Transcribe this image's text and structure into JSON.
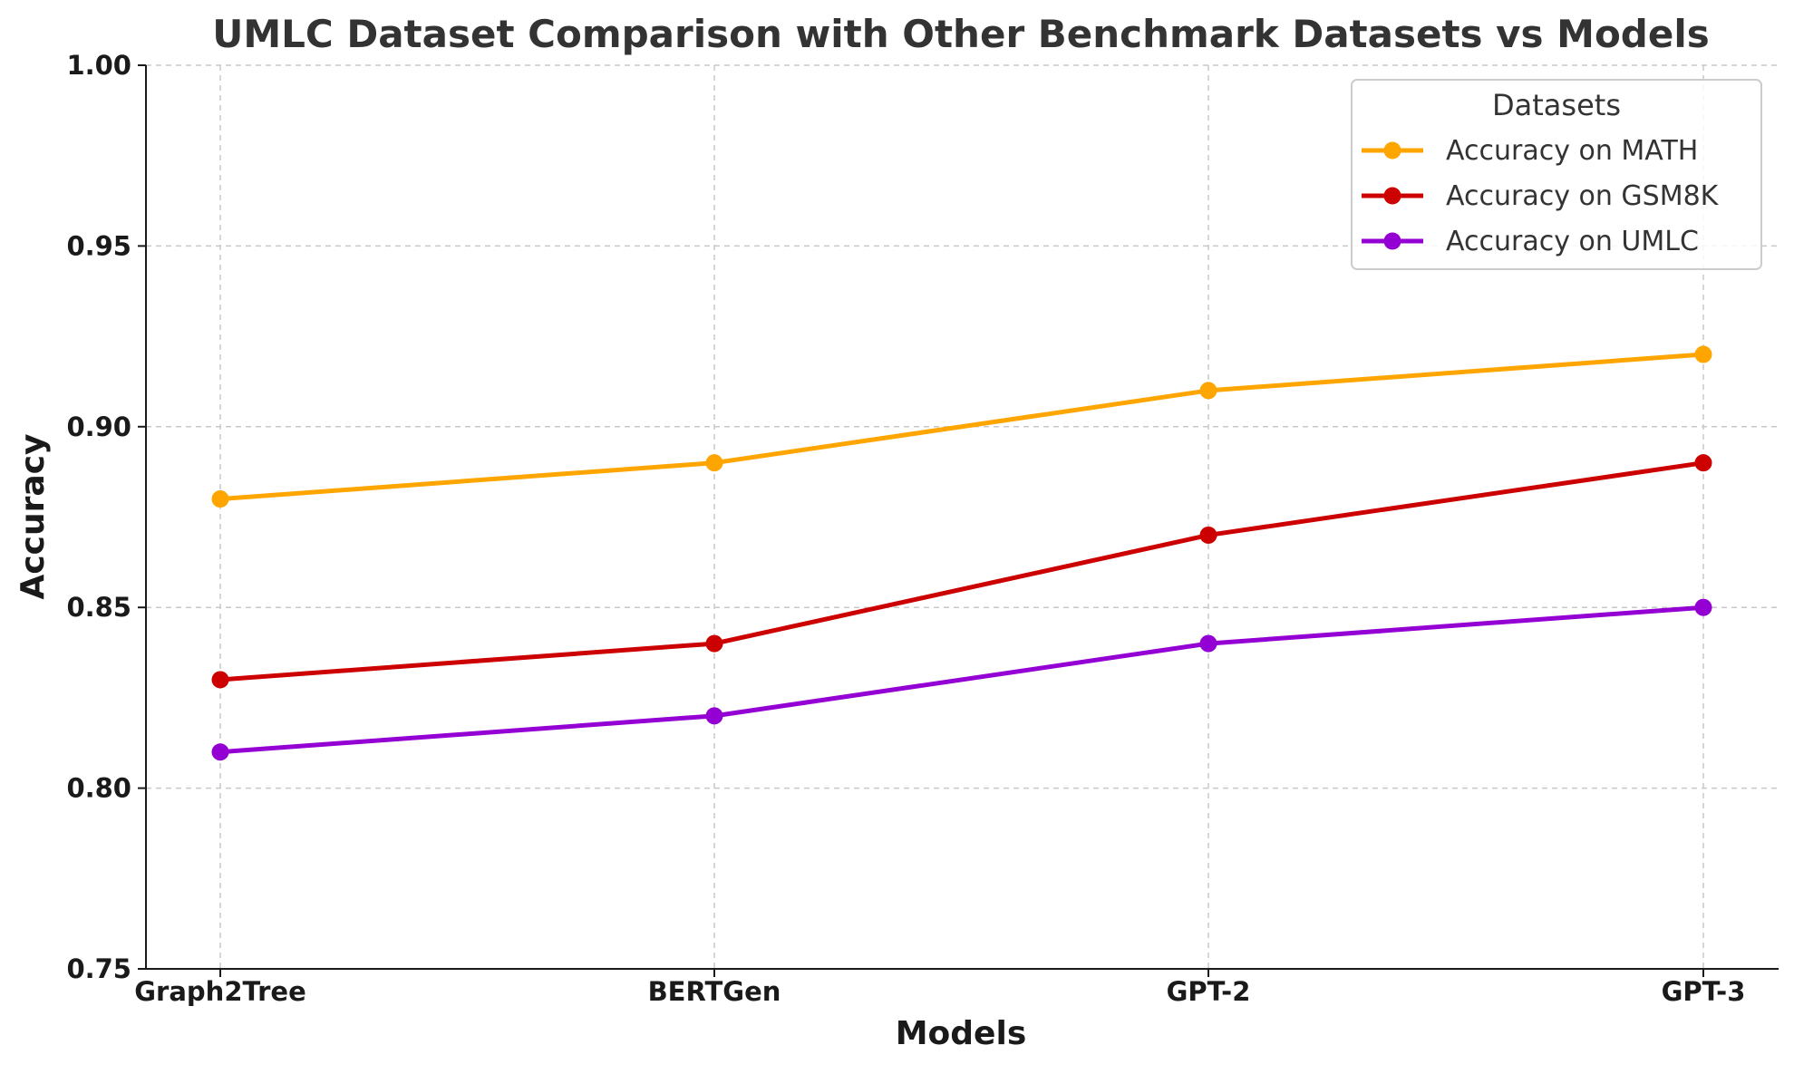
{
  "chart_data": {
    "type": "line",
    "title": "UMLC Dataset Comparison with Other Benchmark Datasets vs Models",
    "xlabel": "Models",
    "ylabel": "Accuracy",
    "categories": [
      "Graph2Tree",
      "BERTGen",
      "GPT-2",
      "GPT-3"
    ],
    "ylim": [
      0.75,
      1.0
    ],
    "yticks": [
      "0.75",
      "0.80",
      "0.85",
      "0.90",
      "0.95",
      "1.00"
    ],
    "grid": true,
    "legend": {
      "title": "Datasets",
      "placement": "top-right"
    },
    "series": [
      {
        "name": "Accuracy on MATH",
        "color": "#FFA500",
        "values": [
          0.88,
          0.89,
          0.91,
          0.92
        ]
      },
      {
        "name": "Accuracy on GSM8K",
        "color": "#CC0000",
        "values": [
          0.83,
          0.84,
          0.87,
          0.89
        ]
      },
      {
        "name": "Accuracy on UMLC",
        "color": "#9400D3",
        "values": [
          0.81,
          0.82,
          0.84,
          0.85
        ]
      }
    ]
  }
}
